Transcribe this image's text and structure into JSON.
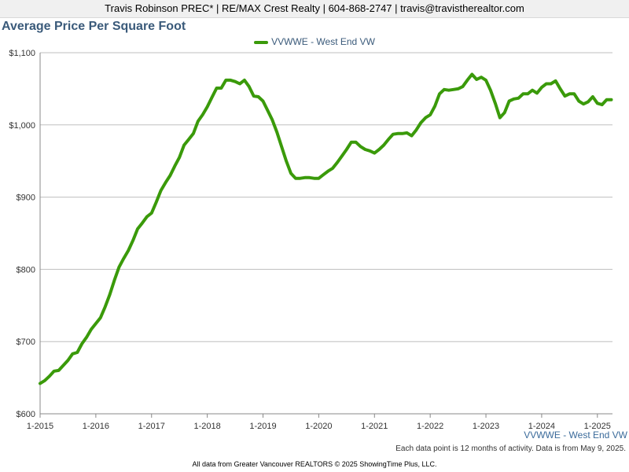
{
  "header": {
    "contact_line": "Travis Robinson PREC* | RE/MAX Crest Realty | 604-868-2747 | travis@travistherealtor.com"
  },
  "chart_data": {
    "type": "line",
    "title": "Average Price Per Square Foot",
    "xlabel": "",
    "ylabel": "",
    "ylim": [
      600,
      1100
    ],
    "y_ticks": [
      "$600",
      "$700",
      "$800",
      "$900",
      "$1,000",
      "$1,100"
    ],
    "y_tick_values": [
      600,
      700,
      800,
      900,
      1000,
      1100
    ],
    "x_tick_labels": [
      "1-2015",
      "1-2016",
      "1-2017",
      "1-2018",
      "1-2019",
      "1-2020",
      "1-2021",
      "1-2022",
      "1-2023",
      "1-2024",
      "1-2025"
    ],
    "x_range": [
      "2015-01",
      "2025-04"
    ],
    "grid": true,
    "legend_position": "top-center",
    "series": [
      {
        "name": "VVWWE - West End VW",
        "color": "#3a9a0a",
        "x": [
          "2015-01",
          "2015-02",
          "2015-03",
          "2015-04",
          "2015-05",
          "2015-06",
          "2015-07",
          "2015-08",
          "2015-09",
          "2015-10",
          "2015-11",
          "2015-12",
          "2016-01",
          "2016-02",
          "2016-03",
          "2016-04",
          "2016-05",
          "2016-06",
          "2016-07",
          "2016-08",
          "2016-09",
          "2016-10",
          "2016-11",
          "2016-12",
          "2017-01",
          "2017-02",
          "2017-03",
          "2017-04",
          "2017-05",
          "2017-06",
          "2017-07",
          "2017-08",
          "2017-09",
          "2017-10",
          "2017-11",
          "2017-12",
          "2018-01",
          "2018-02",
          "2018-03",
          "2018-04",
          "2018-05",
          "2018-06",
          "2018-07",
          "2018-08",
          "2018-09",
          "2018-10",
          "2018-11",
          "2018-12",
          "2019-01",
          "2019-02",
          "2019-03",
          "2019-04",
          "2019-05",
          "2019-06",
          "2019-07",
          "2019-08",
          "2019-09",
          "2019-10",
          "2019-11",
          "2019-12",
          "2020-01",
          "2020-02",
          "2020-03",
          "2020-04",
          "2020-05",
          "2020-06",
          "2020-07",
          "2020-08",
          "2020-09",
          "2020-10",
          "2020-11",
          "2020-12",
          "2021-01",
          "2021-02",
          "2021-03",
          "2021-04",
          "2021-05",
          "2021-06",
          "2021-07",
          "2021-08",
          "2021-09",
          "2021-10",
          "2021-11",
          "2021-12",
          "2022-01",
          "2022-02",
          "2022-03",
          "2022-04",
          "2022-05",
          "2022-06",
          "2022-07",
          "2022-08",
          "2022-09",
          "2022-10",
          "2022-11",
          "2022-12",
          "2023-01",
          "2023-02",
          "2023-03",
          "2023-04",
          "2023-05",
          "2023-06",
          "2023-07",
          "2023-08",
          "2023-09",
          "2023-10",
          "2023-11",
          "2023-12",
          "2024-01",
          "2024-02",
          "2024-03",
          "2024-04",
          "2024-05",
          "2024-06",
          "2024-07",
          "2024-08",
          "2024-09",
          "2024-10",
          "2024-11",
          "2024-12",
          "2025-01",
          "2025-02",
          "2025-03",
          "2025-04"
        ],
        "values": [
          642,
          646,
          652,
          659,
          660,
          667,
          674,
          683,
          685,
          697,
          706,
          717,
          725,
          733,
          748,
          765,
          785,
          803,
          815,
          826,
          840,
          856,
          864,
          873,
          878,
          893,
          909,
          920,
          930,
          943,
          955,
          972,
          980,
          988,
          1005,
          1014,
          1025,
          1038,
          1051,
          1051,
          1062,
          1062,
          1060,
          1057,
          1062,
          1053,
          1040,
          1039,
          1033,
          1020,
          1007,
          990,
          970,
          950,
          933,
          926,
          926,
          927,
          927,
          926,
          926,
          931,
          936,
          940,
          948,
          957,
          966,
          976,
          976,
          970,
          966,
          964,
          961,
          966,
          972,
          980,
          987,
          988,
          988,
          989,
          985,
          993,
          1003,
          1010,
          1014,
          1026,
          1043,
          1049,
          1048,
          1049,
          1050,
          1053,
          1062,
          1070,
          1063,
          1066,
          1062,
          1048,
          1030,
          1010,
          1017,
          1033,
          1036,
          1037,
          1043,
          1043,
          1048,
          1044,
          1052,
          1057,
          1057,
          1061,
          1050,
          1040,
          1043,
          1043,
          1033,
          1029,
          1032,
          1039,
          1030,
          1028,
          1035,
          1035
        ]
      }
    ]
  },
  "series_note": "VVWWE - West End VW",
  "footnote": "Each data point is 12 months of activity. Data is from May 9, 2025.",
  "credit": "All data from Greater Vancouver REALTORS © 2025 ShowingTime Plus, LLC."
}
